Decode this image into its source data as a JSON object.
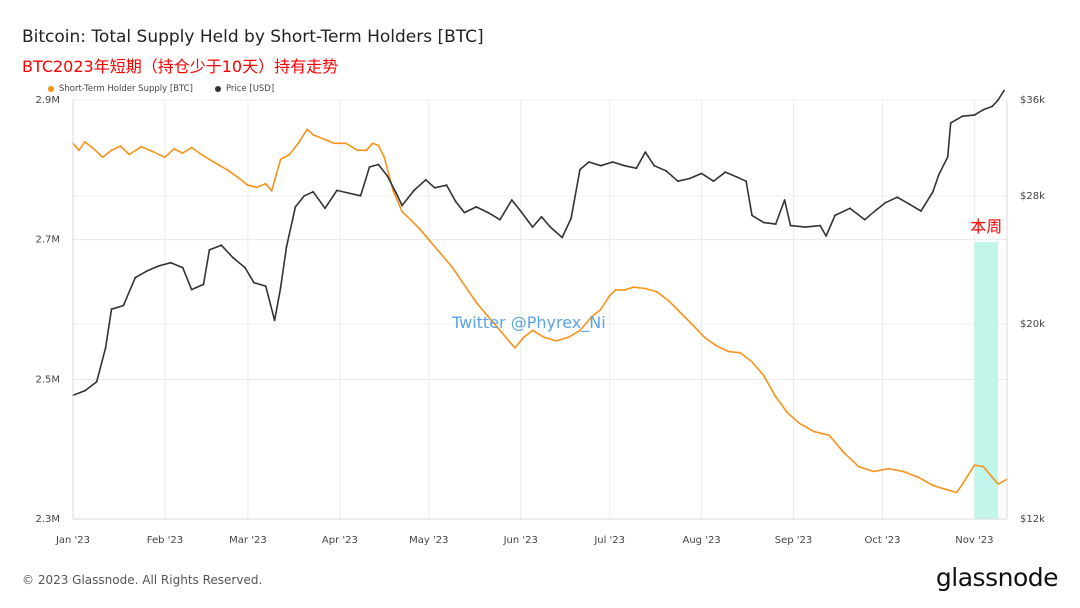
{
  "title": "Bitcoin: Total Supply Held by Short-Term Holders [BTC]",
  "subtitle": "BTC2023年短期（持仓少于10天）持有走势",
  "footer": "© 2023 Glassnode. All Rights Reserved.",
  "brand": "glassnode",
  "colors": {
    "supply": "#f7931a",
    "price": "#333333",
    "highlight": "#b8f5e8",
    "annotation": "#ff0000",
    "watermark": "#4a9be0"
  },
  "chart_data": {
    "type": "line",
    "legend": [
      {
        "name": "Short-Term Holder Supply [BTC]",
        "color": "#f7931a"
      },
      {
        "name": "Price [USD]",
        "color": "#333333"
      }
    ],
    "x_ticks": [
      {
        "label": "Jan '23",
        "date": "2023-01-01"
      },
      {
        "label": "Feb '23",
        "date": "2023-02-01"
      },
      {
        "label": "Mar '23",
        "date": "2023-03-01"
      },
      {
        "label": "Apr '23",
        "date": "2023-04-01"
      },
      {
        "label": "May '23",
        "date": "2023-05-01"
      },
      {
        "label": "Jun '23",
        "date": "2023-06-01"
      },
      {
        "label": "Jul '23",
        "date": "2023-07-01"
      },
      {
        "label": "Aug '23",
        "date": "2023-08-01"
      },
      {
        "label": "Sep '23",
        "date": "2023-09-01"
      },
      {
        "label": "Oct '23",
        "date": "2023-10-01"
      },
      {
        "label": "Nov '23",
        "date": "2023-11-01"
      }
    ],
    "x_range": [
      "2023-01-01",
      "2023-11-12"
    ],
    "y_left": {
      "range": [
        2300000,
        2900000
      ],
      "ticks": [
        {
          "v": 2300000,
          "label": "2.3M"
        },
        {
          "v": 2500000,
          "label": "2.5M"
        },
        {
          "v": 2700000,
          "label": "2.7M"
        },
        {
          "v": 2900000,
          "label": "2.9M"
        }
      ]
    },
    "y_right": {
      "scale": "log",
      "range": [
        12000,
        36000
      ],
      "ticks": [
        {
          "v": 12000,
          "label": "$12k"
        },
        {
          "v": 20000,
          "label": "$20k"
        },
        {
          "v": 28000,
          "label": "$28k"
        },
        {
          "v": 36000,
          "label": "$36k"
        }
      ]
    },
    "series": [
      {
        "name": "Short-Term Holder Supply [BTC]",
        "axis": "left",
        "color": "#f7931a",
        "points": [
          [
            "2023-01-01",
            2838000
          ],
          [
            "2023-01-03",
            2828000
          ],
          [
            "2023-01-05",
            2840000
          ],
          [
            "2023-01-08",
            2830000
          ],
          [
            "2023-01-11",
            2818000
          ],
          [
            "2023-01-14",
            2828000
          ],
          [
            "2023-01-17",
            2834000
          ],
          [
            "2023-01-20",
            2822000
          ],
          [
            "2023-01-24",
            2833000
          ],
          [
            "2023-01-28",
            2826000
          ],
          [
            "2023-02-01",
            2818000
          ],
          [
            "2023-02-04",
            2830000
          ],
          [
            "2023-02-07",
            2824000
          ],
          [
            "2023-02-10",
            2832000
          ],
          [
            "2023-02-14",
            2820000
          ],
          [
            "2023-02-18",
            2810000
          ],
          [
            "2023-02-22",
            2800000
          ],
          [
            "2023-02-26",
            2788000
          ],
          [
            "2023-03-01",
            2778000
          ],
          [
            "2023-03-04",
            2775000
          ],
          [
            "2023-03-07",
            2780000
          ],
          [
            "2023-03-09",
            2770000
          ],
          [
            "2023-03-12",
            2815000
          ],
          [
            "2023-03-15",
            2822000
          ],
          [
            "2023-03-18",
            2838000
          ],
          [
            "2023-03-21",
            2858000
          ],
          [
            "2023-03-23",
            2850000
          ],
          [
            "2023-03-26",
            2845000
          ],
          [
            "2023-03-30",
            2838000
          ],
          [
            "2023-04-03",
            2838000
          ],
          [
            "2023-04-07",
            2828000
          ],
          [
            "2023-04-10",
            2828000
          ],
          [
            "2023-04-12",
            2838000
          ],
          [
            "2023-04-14",
            2835000
          ],
          [
            "2023-04-16",
            2818000
          ],
          [
            "2023-04-19",
            2770000
          ],
          [
            "2023-04-22",
            2740000
          ],
          [
            "2023-04-25",
            2728000
          ],
          [
            "2023-04-28",
            2715000
          ],
          [
            "2023-05-01",
            2700000
          ],
          [
            "2023-05-05",
            2680000
          ],
          [
            "2023-05-09",
            2660000
          ],
          [
            "2023-05-13",
            2635000
          ],
          [
            "2023-05-17",
            2610000
          ],
          [
            "2023-05-21",
            2590000
          ],
          [
            "2023-05-25",
            2570000
          ],
          [
            "2023-05-30",
            2545000
          ],
          [
            "2023-06-02",
            2560000
          ],
          [
            "2023-06-05",
            2570000
          ],
          [
            "2023-06-09",
            2560000
          ],
          [
            "2023-06-13",
            2555000
          ],
          [
            "2023-06-17",
            2560000
          ],
          [
            "2023-06-21",
            2570000
          ],
          [
            "2023-06-25",
            2590000
          ],
          [
            "2023-06-28",
            2600000
          ],
          [
            "2023-07-01",
            2620000
          ],
          [
            "2023-07-03",
            2628000
          ],
          [
            "2023-07-06",
            2628000
          ],
          [
            "2023-07-09",
            2632000
          ],
          [
            "2023-07-13",
            2630000
          ],
          [
            "2023-07-17",
            2625000
          ],
          [
            "2023-07-21",
            2612000
          ],
          [
            "2023-07-25",
            2595000
          ],
          [
            "2023-07-29",
            2578000
          ],
          [
            "2023-08-02",
            2560000
          ],
          [
            "2023-08-06",
            2548000
          ],
          [
            "2023-08-10",
            2540000
          ],
          [
            "2023-08-14",
            2538000
          ],
          [
            "2023-08-18",
            2525000
          ],
          [
            "2023-08-22",
            2505000
          ],
          [
            "2023-08-26",
            2475000
          ],
          [
            "2023-08-30",
            2452000
          ],
          [
            "2023-09-03",
            2437000
          ],
          [
            "2023-09-08",
            2425000
          ],
          [
            "2023-09-13",
            2420000
          ],
          [
            "2023-09-18",
            2395000
          ],
          [
            "2023-09-23",
            2375000
          ],
          [
            "2023-09-28",
            2368000
          ],
          [
            "2023-10-03",
            2372000
          ],
          [
            "2023-10-08",
            2368000
          ],
          [
            "2023-10-13",
            2360000
          ],
          [
            "2023-10-18",
            2348000
          ],
          [
            "2023-10-22",
            2343000
          ],
          [
            "2023-10-26",
            2338000
          ],
          [
            "2023-10-28",
            2350000
          ],
          [
            "2023-11-01",
            2377000
          ],
          [
            "2023-11-04",
            2375000
          ],
          [
            "2023-11-07",
            2360000
          ],
          [
            "2023-11-09",
            2350000
          ],
          [
            "2023-11-12",
            2357000
          ]
        ]
      },
      {
        "name": "Price [USD]",
        "axis": "right",
        "color": "#333333",
        "points": [
          [
            "2023-01-01",
            16600
          ],
          [
            "2023-01-05",
            16800
          ],
          [
            "2023-01-09",
            17200
          ],
          [
            "2023-01-12",
            18800
          ],
          [
            "2023-01-14",
            20800
          ],
          [
            "2023-01-18",
            21000
          ],
          [
            "2023-01-22",
            22600
          ],
          [
            "2023-01-26",
            23000
          ],
          [
            "2023-01-30",
            23300
          ],
          [
            "2023-02-03",
            23500
          ],
          [
            "2023-02-07",
            23200
          ],
          [
            "2023-02-10",
            21900
          ],
          [
            "2023-02-14",
            22200
          ],
          [
            "2023-02-16",
            24300
          ],
          [
            "2023-02-20",
            24600
          ],
          [
            "2023-02-24",
            23800
          ],
          [
            "2023-02-28",
            23200
          ],
          [
            "2023-03-03",
            22300
          ],
          [
            "2023-03-07",
            22100
          ],
          [
            "2023-03-10",
            20200
          ],
          [
            "2023-03-12",
            22000
          ],
          [
            "2023-03-14",
            24500
          ],
          [
            "2023-03-17",
            27200
          ],
          [
            "2023-03-20",
            28000
          ],
          [
            "2023-03-23",
            28300
          ],
          [
            "2023-03-27",
            27100
          ],
          [
            "2023-03-31",
            28400
          ],
          [
            "2023-04-04",
            28200
          ],
          [
            "2023-04-08",
            28000
          ],
          [
            "2023-04-11",
            30200
          ],
          [
            "2023-04-14",
            30400
          ],
          [
            "2023-04-17",
            29500
          ],
          [
            "2023-04-20",
            28200
          ],
          [
            "2023-04-22",
            27300
          ],
          [
            "2023-04-26",
            28400
          ],
          [
            "2023-04-30",
            29200
          ],
          [
            "2023-05-03",
            28600
          ],
          [
            "2023-05-07",
            28800
          ],
          [
            "2023-05-10",
            27600
          ],
          [
            "2023-05-13",
            26800
          ],
          [
            "2023-05-17",
            27200
          ],
          [
            "2023-05-21",
            26800
          ],
          [
            "2023-05-25",
            26300
          ],
          [
            "2023-05-29",
            27700
          ],
          [
            "2023-06-01",
            26900
          ],
          [
            "2023-06-05",
            25800
          ],
          [
            "2023-06-08",
            26500
          ],
          [
            "2023-06-11",
            25800
          ],
          [
            "2023-06-15",
            25100
          ],
          [
            "2023-06-18",
            26400
          ],
          [
            "2023-06-21",
            30000
          ],
          [
            "2023-06-24",
            30600
          ],
          [
            "2023-06-28",
            30300
          ],
          [
            "2023-07-02",
            30600
          ],
          [
            "2023-07-06",
            30300
          ],
          [
            "2023-07-10",
            30100
          ],
          [
            "2023-07-13",
            31400
          ],
          [
            "2023-07-16",
            30300
          ],
          [
            "2023-07-20",
            29900
          ],
          [
            "2023-07-24",
            29100
          ],
          [
            "2023-07-28",
            29300
          ],
          [
            "2023-08-01",
            29700
          ],
          [
            "2023-08-05",
            29100
          ],
          [
            "2023-08-09",
            29800
          ],
          [
            "2023-08-13",
            29400
          ],
          [
            "2023-08-16",
            29100
          ],
          [
            "2023-08-18",
            26600
          ],
          [
            "2023-08-22",
            26100
          ],
          [
            "2023-08-26",
            26000
          ],
          [
            "2023-08-29",
            27700
          ],
          [
            "2023-08-31",
            25900
          ],
          [
            "2023-09-05",
            25800
          ],
          [
            "2023-09-10",
            25900
          ],
          [
            "2023-09-12",
            25200
          ],
          [
            "2023-09-15",
            26600
          ],
          [
            "2023-09-20",
            27100
          ],
          [
            "2023-09-25",
            26300
          ],
          [
            "2023-09-29",
            27000
          ],
          [
            "2023-10-02",
            27500
          ],
          [
            "2023-10-06",
            27900
          ],
          [
            "2023-10-10",
            27400
          ],
          [
            "2023-10-14",
            26900
          ],
          [
            "2023-10-18",
            28300
          ],
          [
            "2023-10-20",
            29600
          ],
          [
            "2023-10-23",
            31000
          ],
          [
            "2023-10-24",
            33900
          ],
          [
            "2023-10-28",
            34500
          ],
          [
            "2023-11-01",
            34600
          ],
          [
            "2023-11-04",
            35100
          ],
          [
            "2023-11-07",
            35400
          ],
          [
            "2023-11-09",
            36000
          ],
          [
            "2023-11-11",
            36900
          ]
        ]
      }
    ],
    "highlight": {
      "from": "2023-11-01",
      "to": "2023-11-09",
      "label": "本周"
    },
    "watermark": "Twitter @Phyrex_Ni",
    "grid": true,
    "legend_position": "top-left"
  }
}
